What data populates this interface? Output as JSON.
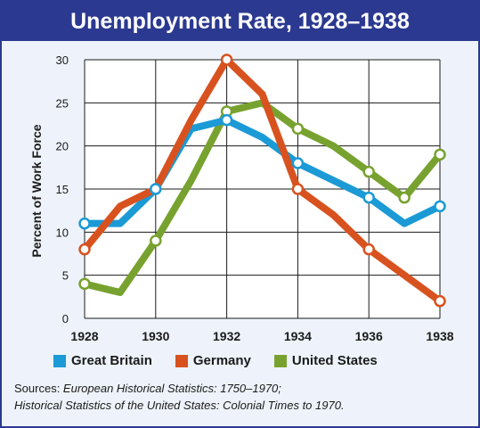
{
  "chart_data": {
    "type": "line",
    "title": "Unemployment Rate, 1928–1938",
    "xlabel": "",
    "ylabel": "Percent of Work Force",
    "x": [
      1928,
      1929,
      1930,
      1931,
      1932,
      1933,
      1934,
      1935,
      1936,
      1937,
      1938
    ],
    "x_ticks": [
      "1928",
      "1930",
      "1932",
      "1934",
      "1936",
      "1938"
    ],
    "y_ticks": [
      "0",
      "5",
      "10",
      "15",
      "20",
      "25",
      "30"
    ],
    "xlim": [
      1928,
      1938
    ],
    "ylim": [
      0,
      30
    ],
    "grid": true,
    "legend_position": "bottom",
    "series": [
      {
        "name": "Great Britain",
        "color": "#1b9ad6",
        "values": [
          11,
          11,
          15,
          22,
          23,
          21,
          18,
          16,
          14,
          11,
          13
        ],
        "markers": [
          true,
          false,
          true,
          false,
          true,
          false,
          true,
          false,
          true,
          false,
          true
        ]
      },
      {
        "name": "Germany",
        "color": "#d8521f",
        "values": [
          8,
          13,
          15,
          23,
          30,
          26,
          15,
          12,
          8,
          5,
          2
        ],
        "markers": [
          true,
          false,
          false,
          false,
          true,
          false,
          true,
          false,
          true,
          false,
          true
        ]
      },
      {
        "name": "United States",
        "color": "#78a22f",
        "values": [
          4,
          3,
          9,
          16,
          24,
          25,
          22,
          20,
          17,
          14,
          19
        ],
        "markers": [
          true,
          false,
          true,
          false,
          true,
          false,
          true,
          false,
          true,
          true,
          true
        ]
      }
    ]
  },
  "sources": {
    "prefix": "Sources: ",
    "line1_title": "European Historical Statistics: 1750–1970;",
    "line2_title": "Historical Statistics of the United States: Colonial Times to 1970."
  }
}
